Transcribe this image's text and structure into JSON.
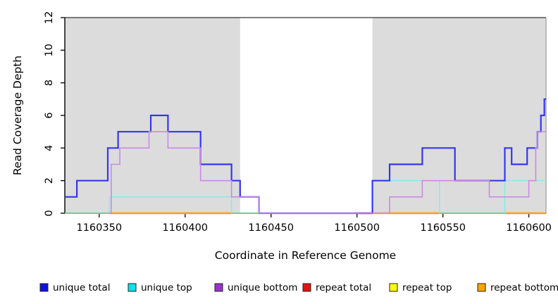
{
  "chart_data": {
    "type": "line",
    "subtype": "step-coverage-plot",
    "title": "",
    "xlabel": "Coordinate in Reference Genome",
    "ylabel": "Read Coverage Depth",
    "xlim": [
      1160330,
      1160610
    ],
    "ylim": [
      0,
      12
    ],
    "x_ticks": [
      1160350,
      1160400,
      1160450,
      1160500,
      1160550,
      1160600
    ],
    "y_ticks": [
      0,
      2,
      4,
      6,
      8,
      10,
      12
    ],
    "grid": false,
    "plot_bg": "#FFFFFF",
    "shaded_color": "#DCDCDC",
    "shaded_regions": [
      {
        "from": 1160330,
        "to": 1160432
      },
      {
        "from": 1160509,
        "to": 1160610
      }
    ],
    "series": [
      {
        "name": "unique top",
        "color": "#8BEBE6",
        "width": 1.6,
        "end": 1160610,
        "steps": [
          [
            1160330,
            0
          ],
          [
            1160356,
            1
          ],
          [
            1160427,
            0
          ],
          [
            1160509,
            2
          ],
          [
            1160548,
            0
          ],
          [
            1160586,
            2
          ]
        ]
      },
      {
        "name": "unique total",
        "color": "#3636EC",
        "width": 2.2,
        "end": 1160610,
        "steps": [
          [
            1160330,
            1
          ],
          [
            1160337,
            2
          ],
          [
            1160355,
            4
          ],
          [
            1160361,
            5
          ],
          [
            1160380,
            6
          ],
          [
            1160390,
            5
          ],
          [
            1160409,
            3
          ],
          [
            1160427,
            2
          ],
          [
            1160432,
            1
          ],
          [
            1160443,
            0
          ],
          [
            1160509,
            2
          ],
          [
            1160519,
            3
          ],
          [
            1160538,
            4
          ],
          [
            1160557,
            2
          ],
          [
            1160586,
            4
          ],
          [
            1160590,
            3
          ],
          [
            1160599,
            4
          ],
          [
            1160605,
            5
          ],
          [
            1160607,
            6
          ],
          [
            1160609,
            7
          ]
        ]
      },
      {
        "name": "unique bottom",
        "color": "#C78BE3",
        "width": 1.6,
        "end": 1160610,
        "steps": [
          [
            1160330,
            0
          ],
          [
            1160357,
            3
          ],
          [
            1160362,
            4
          ],
          [
            1160379,
            5
          ],
          [
            1160390,
            4
          ],
          [
            1160409,
            2
          ],
          [
            1160427,
            1
          ],
          [
            1160443,
            0
          ],
          [
            1160519,
            1
          ],
          [
            1160538,
            2
          ],
          [
            1160577,
            1
          ],
          [
            1160600,
            2
          ],
          [
            1160604,
            4
          ],
          [
            1160605,
            5
          ]
        ]
      }
    ],
    "baseline_segments": [
      {
        "name": "repeat-total-baseline",
        "color": "#E05A5A",
        "from": 1160499,
        "to": 1160509
      },
      {
        "name": "repeat-bottom-baseline",
        "color": "#FF9D1E",
        "from": 1160356,
        "to": 1160427
      },
      {
        "name": "repeat-bottom-baseline",
        "color": "#FF9D1E",
        "from": 1160509,
        "to": 1160548
      },
      {
        "name": "repeat-bottom-baseline",
        "color": "#FF9D1E",
        "from": 1160586,
        "to": 1160610
      },
      {
        "name": "baseline-green",
        "color": "#7CC98F",
        "from": 1160330,
        "to": 1160356
      },
      {
        "name": "baseline-green",
        "color": "#7CC98F",
        "from": 1160427,
        "to": 1160443
      },
      {
        "name": "baseline-green",
        "color": "#7CC98F",
        "from": 1160548,
        "to": 1160586
      }
    ],
    "legend": [
      {
        "label": "unique total",
        "color": "#0F0FE8"
      },
      {
        "label": "unique top",
        "color": "#00E5EE"
      },
      {
        "label": "unique bottom",
        "color": "#9932CC"
      },
      {
        "label": "repeat total",
        "color": "#E81010"
      },
      {
        "label": "repeat top",
        "color": "#FFFF00"
      },
      {
        "label": "repeat bottom",
        "color": "#FFA500"
      }
    ],
    "legend_position": "bottom"
  }
}
